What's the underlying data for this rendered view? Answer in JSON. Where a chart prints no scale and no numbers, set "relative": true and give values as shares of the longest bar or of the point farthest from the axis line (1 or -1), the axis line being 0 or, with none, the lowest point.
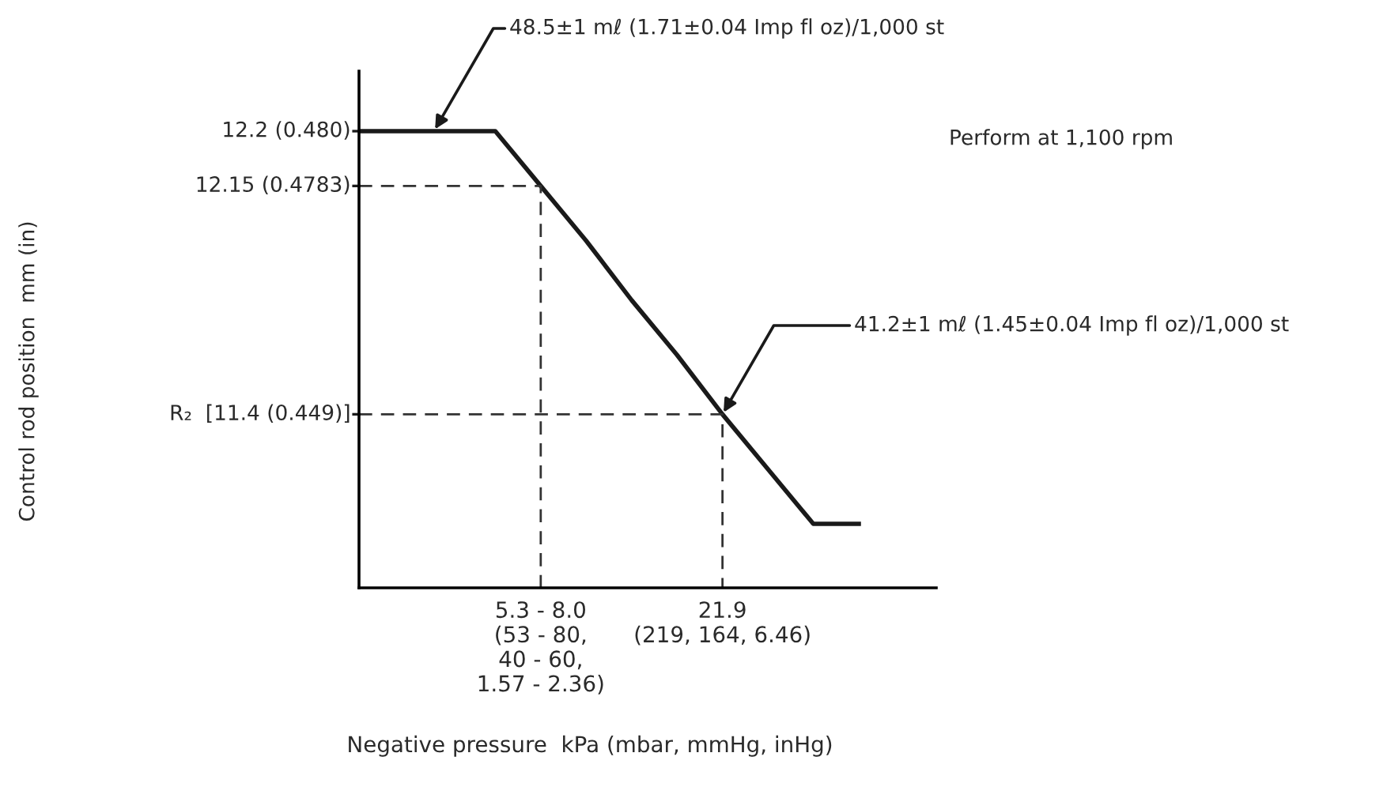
{
  "chart_data": {
    "type": "line",
    "relative": true,
    "categories": [
      null,
      null,
      null,
      null,
      "5.3 - 8.0\n(53 - 80,\n40 - 60,\n1.57 - 2.36)",
      null,
      null,
      null,
      "21.9\n(219, 164, 6.46)",
      null,
      null,
      null
    ],
    "series": [
      {
        "color": "#1a1a1a",
        "values": [
          1,
          1,
          1,
          1,
          0.88,
          0.76,
          0.63,
          0.51,
          0.38,
          0.26,
          0.14,
          0.14
        ]
      }
    ],
    "xlabel": "Negative pressure  kPa (mbar, mmHg, inHg)",
    "ref_lines": [
      {
        "axis": "y",
        "value": 0.88,
        "line_style": "dashed"
      },
      {
        "axis": "y",
        "value": 0.38,
        "line_style": "dashed"
      }
    ],
    "annotations": [
      "12.2 (0.480)",
      "12.15 (0.4783)",
      "R₂  [11.4 (0.449)]",
      "48.5±1 mℓ (1.71±0.04 Imp fl oz)/1,000 st",
      "41.2±1 mℓ (1.45±0.04 Imp fl oz)/1,000 st",
      "Perform at 1,100 rpm",
      "Control rod position  mm (in)"
    ],
    "legend": false,
    "marker": "none",
    "line_style": "solid"
  }
}
